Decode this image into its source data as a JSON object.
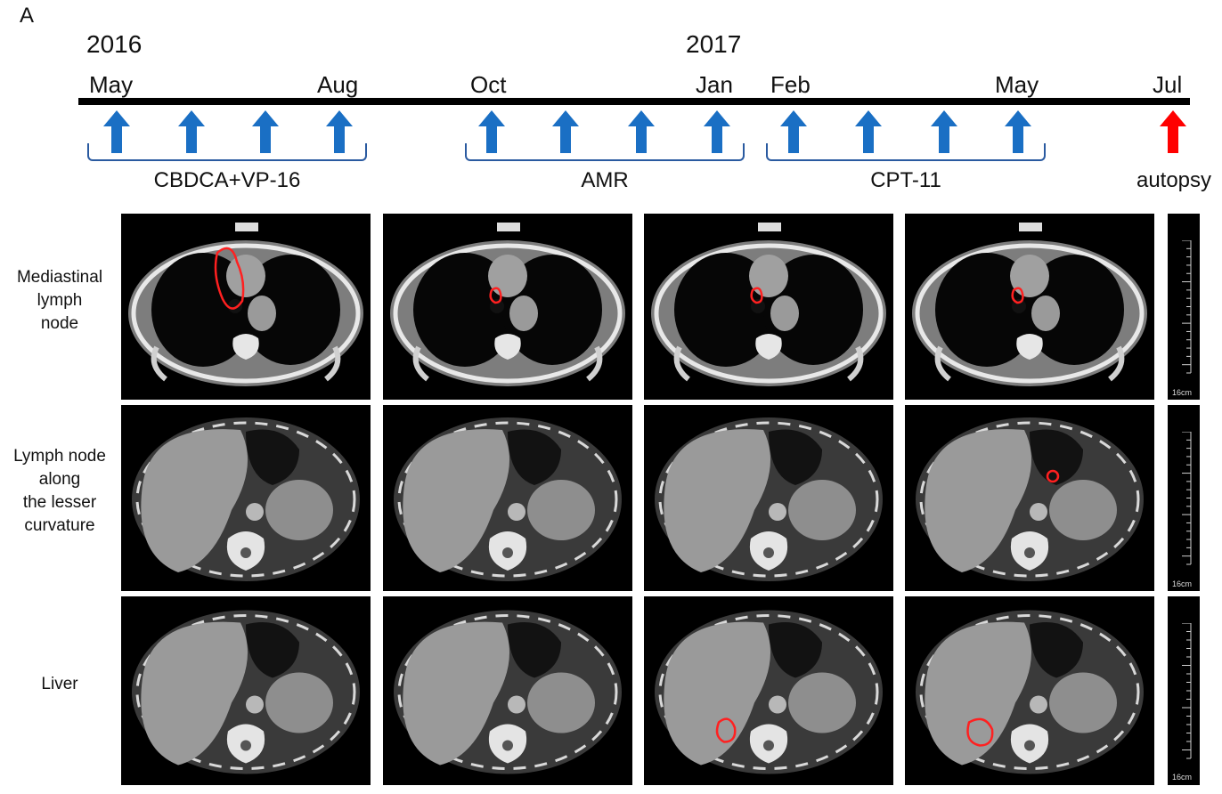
{
  "panel_letter": "A",
  "years": [
    "2016",
    "2017"
  ],
  "months": [
    "May",
    "Aug",
    "Oct",
    "Jan",
    "Feb",
    "May",
    "Jul"
  ],
  "phases": [
    {
      "label": "CBDCA+VP-16",
      "arrows": 4
    },
    {
      "label": "AMR",
      "arrows": 4
    },
    {
      "label": "CPT-11",
      "arrows": 4
    }
  ],
  "final_event": {
    "label": "autopsy"
  },
  "rows": [
    {
      "label": "Mediastinal\nlymph\nnode",
      "region": "chest"
    },
    {
      "label": "Lymph node\nalong\nthe lesser\ncurvature",
      "region": "upper-abdomen"
    },
    {
      "label": "Liver",
      "region": "abdomen"
    }
  ],
  "scale_text": "16cm",
  "colors": {
    "treatment_arrow": "#1a6fc4",
    "autopsy_arrow": "#ff0000",
    "bracket": "#2a5aa0",
    "lesion_outline": "#ff2020",
    "timeline": "#000000"
  }
}
